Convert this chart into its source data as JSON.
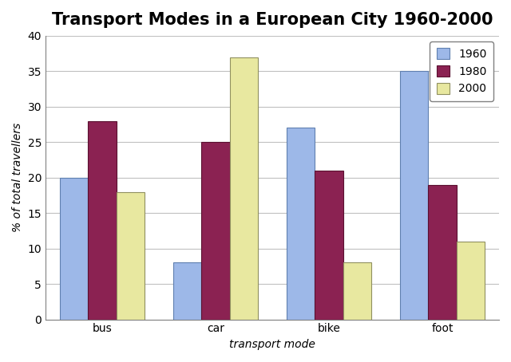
{
  "title": "Transport Modes in a European City 1960-2000",
  "xlabel": "transport mode",
  "ylabel": "% of total travellers",
  "categories": [
    "bus",
    "car",
    "bike",
    "foot"
  ],
  "years": [
    "1960",
    "1980",
    "2000"
  ],
  "values": {
    "1960": [
      20,
      8,
      27,
      35
    ],
    "1980": [
      28,
      25,
      21,
      19
    ],
    "2000": [
      18,
      37,
      8,
      11
    ]
  },
  "colors": {
    "1960": "#9db8e8",
    "1980": "#8b2252",
    "2000": "#e8e8a0"
  },
  "edge_colors": {
    "1960": "#6080b0",
    "1980": "#5a1030",
    "2000": "#909060"
  },
  "ylim": [
    0,
    40
  ],
  "yticks": [
    0,
    5,
    10,
    15,
    20,
    25,
    30,
    35,
    40
  ],
  "bar_width": 0.25,
  "fig_background": "#ffffff",
  "plot_background": "#ffffff",
  "grid_color": "#c0c0c0",
  "legend_fontsize": 10,
  "title_fontsize": 15,
  "label_fontsize": 10,
  "tick_fontsize": 10
}
